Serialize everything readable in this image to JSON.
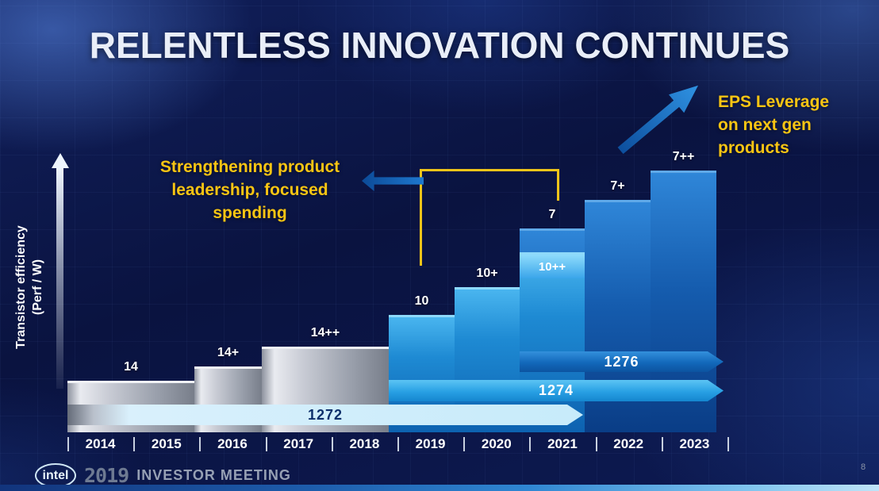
{
  "slide": {
    "title": "RELENTLESS INNOVATION CONTINUES",
    "annotations": {
      "left_note_lines": [
        "Strengthening product",
        "leadership, focused",
        "spending"
      ],
      "right_note_lines": [
        "EPS Leverage",
        "on next gen",
        "products"
      ]
    },
    "footer": {
      "brand": "intel",
      "event_year": "2019",
      "event_name": "INVESTOR MEETING",
      "page_number": "8"
    }
  },
  "chart_data": {
    "type": "bar",
    "title": "",
    "ylabel_lines": [
      "Transistor efficiency",
      "(Perf / W)"
    ],
    "ylabel": "Transistor efficiency (Perf / W)",
    "xlabel": "",
    "categories": [
      "2014",
      "2015",
      "2016",
      "2017",
      "2018",
      "2019",
      "2020",
      "2021",
      "2022",
      "2023"
    ],
    "grid": false,
    "legend_position": "none",
    "bars": [
      {
        "label": "14",
        "node_group": "14nm",
        "years": [
          "2014",
          "2015"
        ],
        "relative_height": 1
      },
      {
        "label": "14+",
        "node_group": "14nm",
        "years": [
          "2016"
        ],
        "relative_height": 2
      },
      {
        "label": "14++",
        "node_group": "14nm",
        "years": [
          "2017",
          "2018"
        ],
        "relative_height": 3
      },
      {
        "label": "10",
        "node_group": "10nm",
        "years": [
          "2019"
        ],
        "relative_height": 4
      },
      {
        "label": "10+",
        "node_group": "10nm",
        "years": [
          "2020"
        ],
        "relative_height": 5
      },
      {
        "label": "10++",
        "node_group": "10nm",
        "years": [
          "2021"
        ],
        "relative_height": 6
      },
      {
        "label": "7",
        "node_group": "7nm",
        "years": [
          "2021"
        ],
        "relative_height": 7
      },
      {
        "label": "7+",
        "node_group": "7nm",
        "years": [
          "2022"
        ],
        "relative_height": 8
      },
      {
        "label": "7++",
        "node_group": "7nm",
        "years": [
          "2023"
        ],
        "relative_height": 9
      }
    ],
    "process_bands": [
      {
        "label": "1272",
        "years": "2014-2021"
      },
      {
        "label": "1274",
        "years": "2019-2023"
      },
      {
        "label": "1276",
        "years": "2021-2023"
      }
    ]
  },
  "colors": {
    "background_navy": "#0a1340",
    "accent_yellow": "#f9c513",
    "title_text": "#e9eef8",
    "bar_gray": "#b9bfca",
    "bar_blue_10nm": "#1e8ad3",
    "bar_dark_blue_7nm": "#155cae",
    "band_1272": "#c7ebfa",
    "band_1274": "#28a0e4",
    "band_1276": "#1268ba",
    "arrow_blue": "#1e78cf"
  }
}
